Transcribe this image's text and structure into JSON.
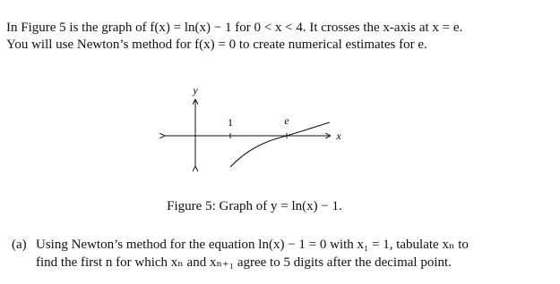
{
  "intro": {
    "lines": [
      "In Figure 5 is the graph of f(x) = ln(x) − 1 for 0 < x < 4. It crosses the x-axis at x = e.",
      "You will use Newton’s method for f(x) = 0 to create numerical estimates for e."
    ]
  },
  "figure": {
    "y_axis_label": "y",
    "x_axis_label": "x",
    "tick_label": "1",
    "root_label": "e",
    "caption": "Figure 5: Graph of y = ln(x) − 1."
  },
  "question": {
    "marker": "(a)",
    "lines": [
      "Using Newton’s method for the equation ln(x) − 1 = 0 with x₁ = 1, tabulate xₙ to",
      "find the first n for which xₙ and xₙ₊₁ agree to 5 digits after the decimal point."
    ]
  }
}
